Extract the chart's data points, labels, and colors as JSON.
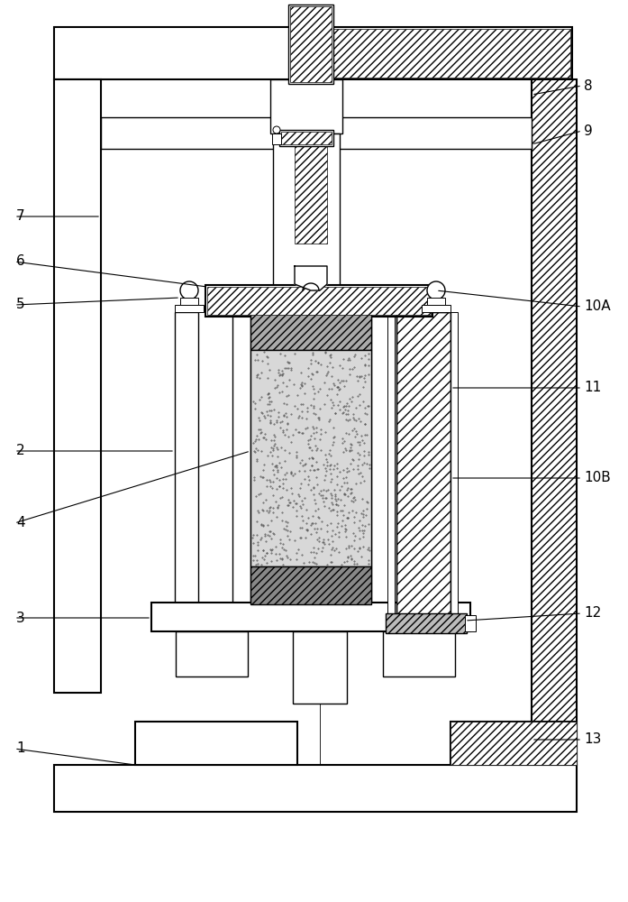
{
  "bg_color": "#ffffff",
  "line_color": "#000000",
  "fig_width": 6.97,
  "fig_height": 10.0,
  "dpi": 100,
  "lw": 1.0,
  "lw_thick": 1.5,
  "lw_thin": 0.7
}
